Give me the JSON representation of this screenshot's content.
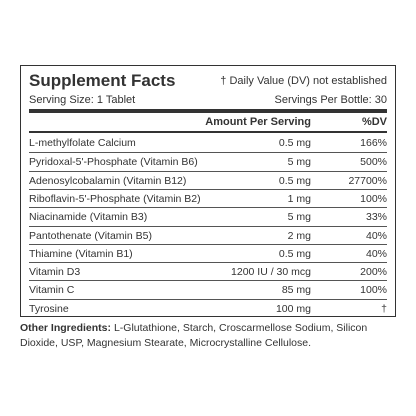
{
  "title": "Supplement Facts",
  "dv_note": "† Daily Value (DV) not established",
  "serving_size": "Serving Size: 1 Tablet",
  "servings_per_bottle": "Servings Per Bottle: 30",
  "table": {
    "header": [
      "Amount Per Serving",
      "%DV"
    ],
    "rows": [
      [
        "L-methylfolate Calcium",
        "0.5 mg",
        "166%"
      ],
      [
        "Pyridoxal-5'-Phosphate (Vitamin B6)",
        "5 mg",
        "500%"
      ],
      [
        "Adenosylcobalamin (Vitamin B12)",
        "0.5 mg",
        "27700%"
      ],
      [
        "Riboflavin-5'-Phosphate (Vitamin B2)",
        "1 mg",
        "100%"
      ],
      [
        "Niacinamide (Vitamin B3)",
        "5 mg",
        "33%"
      ],
      [
        "Pantothenate (Vitamin B5)",
        "2 mg",
        "40%"
      ],
      [
        "Thiamine (Vitamin B1)",
        "0.5 mg",
        "40%"
      ],
      [
        "Vitamin D3",
        "1200 IU / 30 mcg",
        "200%"
      ],
      [
        "Vitamin C",
        "85 mg",
        "100%"
      ],
      [
        "Tyrosine",
        "100 mg",
        "†"
      ]
    ]
  },
  "other_ingredients": {
    "label": "Other Ingredients:",
    "text": "L-Glutathione, Starch, Croscarmellose Sodium, Silicon Dioxide, USP, Magnesium Stearate, Microcrystalline Cellulose."
  }
}
